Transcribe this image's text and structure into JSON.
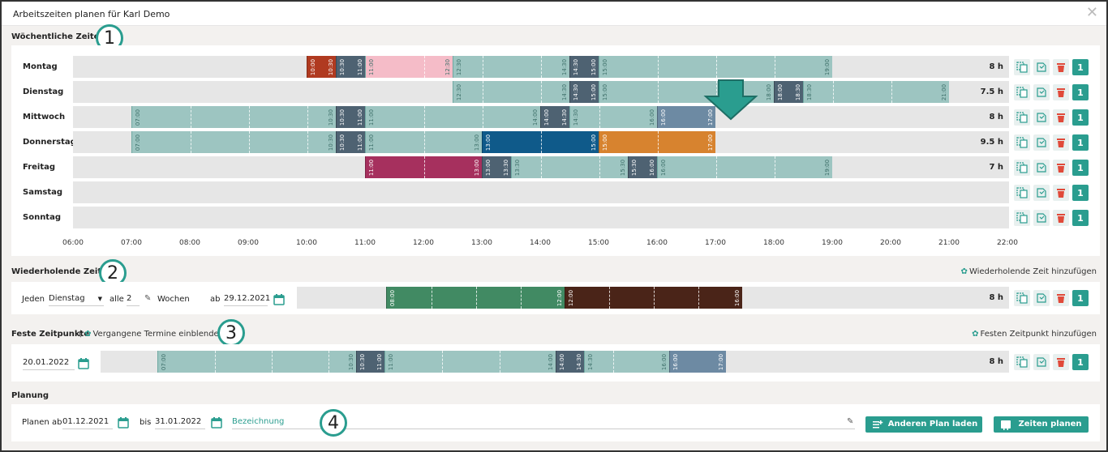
{
  "window": {
    "title": "Arbeitszeiten planen für Karl Demo"
  },
  "sections": {
    "weekly": "Wöchentliche Zeiten",
    "recurring": "Wiederholende Zeiten",
    "fixed": "Feste Zeitpunkte",
    "planning": "Planung"
  },
  "badges": [
    "1",
    "2",
    "3",
    "4"
  ],
  "axis": {
    "ticks": [
      "06:00",
      "07:00",
      "08:00",
      "09:00",
      "10:00",
      "11:00",
      "12:00",
      "13:00",
      "14:00",
      "15:00",
      "16:00",
      "17:00",
      "18:00",
      "19:00",
      "20:00",
      "21:00",
      "22:00"
    ]
  },
  "colors": {
    "accent": "#2a9d8f",
    "teal": "#9dc5c1",
    "slate": "#4e6272",
    "red": "#b03a20",
    "pink": "#f5bcc8",
    "blue": "#0f5a8a",
    "orange": "#d7832f",
    "magenta": "#a6305e",
    "steel": "#6d8aa3",
    "green": "#418a63",
    "brown": "#4a2418"
  },
  "days": [
    {
      "name": "Montag",
      "hours": "8 h",
      "num": "1",
      "segments": [
        {
          "start": "10:00",
          "end": "10:30",
          "color": "red",
          "labels": [
            "10:00",
            "10:30"
          ]
        },
        {
          "start": "10:30",
          "end": "11:00",
          "color": "slate",
          "labels": [
            "10:30",
            "11:00"
          ]
        },
        {
          "start": "11:00",
          "end": "12:30",
          "color": "pink",
          "labels": [
            "11:00",
            "12:30"
          ]
        },
        {
          "start": "12:30",
          "end": "14:30",
          "color": "teal",
          "labels": [
            "12:30",
            "14:30"
          ]
        },
        {
          "start": "14:30",
          "end": "15:00",
          "color": "slate",
          "labels": [
            "14:30",
            "15:00"
          ]
        },
        {
          "start": "15:00",
          "end": "19:00",
          "color": "teal",
          "labels": [
            "15:00",
            "19:00"
          ]
        }
      ]
    },
    {
      "name": "Dienstag",
      "hours": "7.5 h",
      "num": "1",
      "segments": [
        {
          "start": "12:30",
          "end": "14:30",
          "color": "teal",
          "labels": [
            "12:30",
            "14:30"
          ]
        },
        {
          "start": "14:30",
          "end": "15:00",
          "color": "slate",
          "labels": [
            "14:30",
            "15:00"
          ]
        },
        {
          "start": "15:00",
          "end": "18:00",
          "color": "teal",
          "labels": [
            "15:00",
            "18:00"
          ]
        },
        {
          "start": "18:00",
          "end": "18:30",
          "color": "slate",
          "labels": [
            "18:00",
            "18:30"
          ]
        },
        {
          "start": "18:30",
          "end": "21:00",
          "color": "teal",
          "labels": [
            "18:30",
            "21:00"
          ]
        }
      ]
    },
    {
      "name": "Mittwoch",
      "hours": "8 h",
      "num": "1",
      "segments": [
        {
          "start": "07:00",
          "end": "10:30",
          "color": "teal",
          "labels": [
            "07:00",
            "10:30"
          ]
        },
        {
          "start": "10:30",
          "end": "11:00",
          "color": "slate",
          "labels": [
            "10:30",
            "11:00"
          ]
        },
        {
          "start": "11:00",
          "end": "14:00",
          "color": "teal",
          "labels": [
            "11:00",
            "14:00"
          ]
        },
        {
          "start": "14:00",
          "end": "14:30",
          "color": "slate",
          "labels": [
            "14:00",
            "14:30"
          ]
        },
        {
          "start": "14:30",
          "end": "16:00",
          "color": "teal",
          "labels": [
            "14:30",
            "16:00"
          ]
        },
        {
          "start": "16:00",
          "end": "17:00",
          "color": "steel",
          "labels": [
            "16:00",
            "17:00"
          ]
        }
      ]
    },
    {
      "name": "Donnerstag",
      "hours": "9.5 h",
      "num": "1",
      "segments": [
        {
          "start": "07:00",
          "end": "10:30",
          "color": "teal",
          "labels": [
            "07:00",
            "10:30"
          ]
        },
        {
          "start": "10:30",
          "end": "11:00",
          "color": "slate",
          "labels": [
            "10:30",
            "11:00"
          ]
        },
        {
          "start": "11:00",
          "end": "13:00",
          "color": "teal",
          "labels": [
            "11:00",
            "13:00"
          ]
        },
        {
          "start": "13:00",
          "end": "15:00",
          "color": "blue",
          "labels": [
            "13:00",
            "15:00"
          ]
        },
        {
          "start": "15:00",
          "end": "17:00",
          "color": "orange",
          "labels": [
            "15:00",
            "17:00"
          ]
        }
      ]
    },
    {
      "name": "Freitag",
      "hours": "7 h",
      "num": "1",
      "segments": [
        {
          "start": "11:00",
          "end": "13:00",
          "color": "magenta",
          "labels": [
            "11:00",
            "13:00"
          ]
        },
        {
          "start": "13:00",
          "end": "13:30",
          "color": "slate",
          "labels": [
            "13:00",
            "13:30"
          ]
        },
        {
          "start": "13:30",
          "end": "15:30",
          "color": "teal",
          "labels": [
            "13:30",
            "15:30"
          ]
        },
        {
          "start": "15:30",
          "end": "16:00",
          "color": "slate",
          "labels": [
            "15:30",
            "16:00"
          ]
        },
        {
          "start": "16:00",
          "end": "19:00",
          "color": "teal",
          "labels": [
            "16:00",
            "19:00"
          ]
        }
      ]
    },
    {
      "name": "Samstag",
      "hours": "",
      "num": "1",
      "segments": []
    },
    {
      "name": "Sonntag",
      "hours": "",
      "num": "1",
      "segments": []
    }
  ],
  "recurring": {
    "add_link": "Wiederholende Zeit hinzufügen",
    "every_label": "Jeden",
    "weekday": "Dienstag",
    "all_label": "alle",
    "interval": "2",
    "weeks_label": "Wochen",
    "from_label": "ab",
    "from_date": "29.12.2021",
    "hours": "8 h",
    "num": "1",
    "segments": [
      {
        "start": "08:00",
        "end": "12:00",
        "color": "green",
        "labels": [
          "08:00",
          "12:00"
        ]
      },
      {
        "start": "12:00",
        "end": "16:00",
        "color": "brown",
        "labels": [
          "12:00",
          "16:00"
        ]
      }
    ]
  },
  "fixed": {
    "show_past": "Vergangene Termine einblenden",
    "add_link": "Festen Zeitpunkt hinzufügen",
    "date": "20.01.2022",
    "hours": "8 h",
    "num": "1",
    "segments": [
      {
        "start": "07:00",
        "end": "10:30",
        "color": "teal",
        "labels": [
          "07:00",
          "10:30"
        ]
      },
      {
        "start": "10:30",
        "end": "11:00",
        "color": "slate",
        "labels": [
          "10:30",
          "11:00"
        ]
      },
      {
        "start": "11:00",
        "end": "14:00",
        "color": "teal",
        "labels": [
          "11:00",
          "14:00"
        ]
      },
      {
        "start": "14:00",
        "end": "14:30",
        "color": "slate",
        "labels": [
          "14:00",
          "14:30"
        ]
      },
      {
        "start": "14:30",
        "end": "16:00",
        "color": "teal",
        "labels": [
          "14:30",
          "16:00"
        ]
      },
      {
        "start": "16:00",
        "end": "17:00",
        "color": "steel",
        "labels": [
          "16:00",
          "17:00"
        ]
      }
    ]
  },
  "planning": {
    "from_label": "Planen ab",
    "from_date": "01.12.2021",
    "to_label": "bis",
    "to_date": "31.01.2022",
    "name_placeholder": "Bezeichnung",
    "load_button": "Anderen Plan laden",
    "plan_button": "Zeiten planen"
  }
}
